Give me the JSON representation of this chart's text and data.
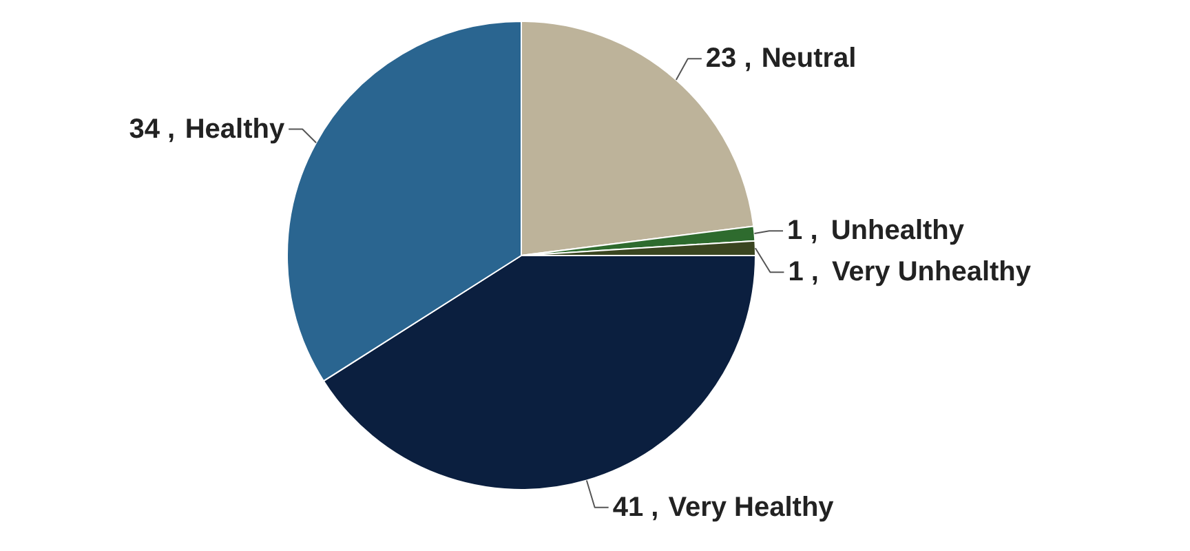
{
  "chart_data": {
    "type": "pie",
    "categories": [
      "Neutral",
      "Unhealthy",
      "Very Unhealthy",
      "Very Healthy",
      "Healthy"
    ],
    "values": [
      23,
      1,
      1,
      41,
      34
    ],
    "value_labels": [
      "23 ,",
      "1 ,",
      "1 ,",
      "41 ,",
      "34 ,"
    ],
    "colors": [
      "#bdb39a",
      "#2e6b2e",
      "#3a4520",
      "#0b1f3f",
      "#2a6590"
    ]
  }
}
